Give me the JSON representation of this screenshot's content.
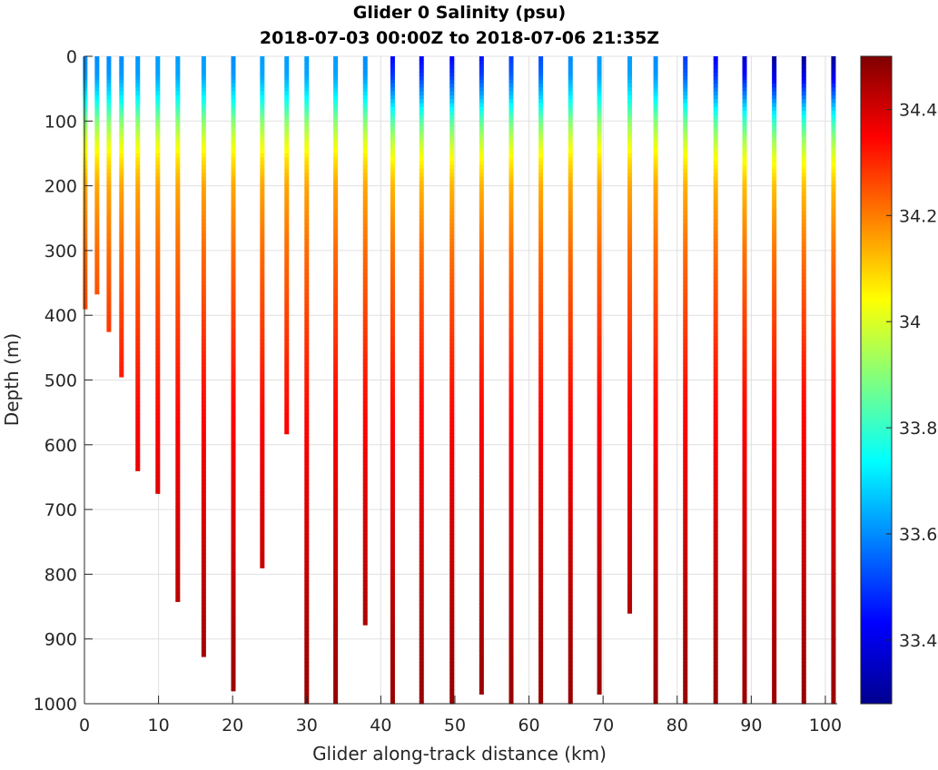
{
  "chart_data": {
    "type": "scatter",
    "title": "Glider 0 Salinity (psu)",
    "subtitle": "2018-07-03 00:00Z to 2018-07-06 21:35Z",
    "xlabel": "Glider along-track distance (km)",
    "ylabel": "Depth (m)",
    "xlim": [
      0,
      101.6
    ],
    "ylim": [
      1000,
      0
    ],
    "xticks": [
      "0",
      "10",
      "20",
      "30",
      "40",
      "50",
      "60",
      "70",
      "80",
      "90",
      "100"
    ],
    "yticks": [
      "0",
      "100",
      "200",
      "300",
      "400",
      "500",
      "600",
      "700",
      "800",
      "900",
      "1000"
    ],
    "grid": true,
    "colorbar": {
      "label_ticks": [
        "33.4",
        "33.6",
        "33.8",
        "34",
        "34.2",
        "34.4"
      ],
      "range": [
        33.28,
        34.5
      ],
      "colormap": "jet"
    },
    "reference_profile": {
      "depth": [
        0,
        30,
        60,
        100,
        130,
        160,
        200,
        300,
        400,
        500,
        600,
        700,
        800,
        900,
        1000
      ],
      "salinity": [
        33.62,
        33.63,
        33.72,
        33.9,
        34.0,
        34.08,
        34.15,
        34.22,
        34.27,
        34.32,
        34.36,
        34.39,
        34.42,
        34.45,
        34.47
      ]
    },
    "profiles": [
      {
        "x_km": 0.1,
        "max_depth": 390,
        "surface_salinity": 33.6
      },
      {
        "x_km": 1.7,
        "max_depth": 367,
        "surface_salinity": 33.6
      },
      {
        "x_km": 3.3,
        "max_depth": 425,
        "surface_salinity": 33.6
      },
      {
        "x_km": 5.0,
        "max_depth": 495,
        "surface_salinity": 33.6
      },
      {
        "x_km": 7.2,
        "max_depth": 640,
        "surface_salinity": 33.61
      },
      {
        "x_km": 9.9,
        "max_depth": 675,
        "surface_salinity": 33.62
      },
      {
        "x_km": 12.6,
        "max_depth": 842,
        "surface_salinity": 33.62
      },
      {
        "x_km": 16.1,
        "max_depth": 927,
        "surface_salinity": 33.62
      },
      {
        "x_km": 20.1,
        "max_depth": 980,
        "surface_salinity": 33.6
      },
      {
        "x_km": 24.0,
        "max_depth": 790,
        "surface_salinity": 33.62
      },
      {
        "x_km": 27.3,
        "max_depth": 583,
        "surface_salinity": 33.62
      },
      {
        "x_km": 30.0,
        "max_depth": 1000,
        "surface_salinity": 33.62
      },
      {
        "x_km": 33.9,
        "max_depth": 1000,
        "surface_salinity": 33.62
      },
      {
        "x_km": 37.9,
        "max_depth": 878,
        "surface_salinity": 33.6
      },
      {
        "x_km": 41.6,
        "max_depth": 1000,
        "surface_salinity": 33.43
      },
      {
        "x_km": 45.5,
        "max_depth": 1000,
        "surface_salinity": 33.43
      },
      {
        "x_km": 49.6,
        "max_depth": 1000,
        "surface_salinity": 33.43
      },
      {
        "x_km": 53.6,
        "max_depth": 985,
        "surface_salinity": 33.45
      },
      {
        "x_km": 57.6,
        "max_depth": 1000,
        "surface_salinity": 33.5
      },
      {
        "x_km": 61.6,
        "max_depth": 1000,
        "surface_salinity": 33.52
      },
      {
        "x_km": 65.6,
        "max_depth": 1000,
        "surface_salinity": 33.6
      },
      {
        "x_km": 69.5,
        "max_depth": 985,
        "surface_salinity": 33.62
      },
      {
        "x_km": 73.6,
        "max_depth": 860,
        "surface_salinity": 33.62
      },
      {
        "x_km": 77.1,
        "max_depth": 1000,
        "surface_salinity": 33.6
      },
      {
        "x_km": 81.1,
        "max_depth": 1000,
        "surface_salinity": 33.5
      },
      {
        "x_km": 85.2,
        "max_depth": 1000,
        "surface_salinity": 33.42
      },
      {
        "x_km": 89.1,
        "max_depth": 1000,
        "surface_salinity": 33.36
      },
      {
        "x_km": 93.1,
        "max_depth": 1000,
        "surface_salinity": 33.3
      },
      {
        "x_km": 97.1,
        "max_depth": 1000,
        "surface_salinity": 33.3
      },
      {
        "x_km": 101.1,
        "max_depth": 1000,
        "surface_salinity": 33.3
      }
    ]
  }
}
